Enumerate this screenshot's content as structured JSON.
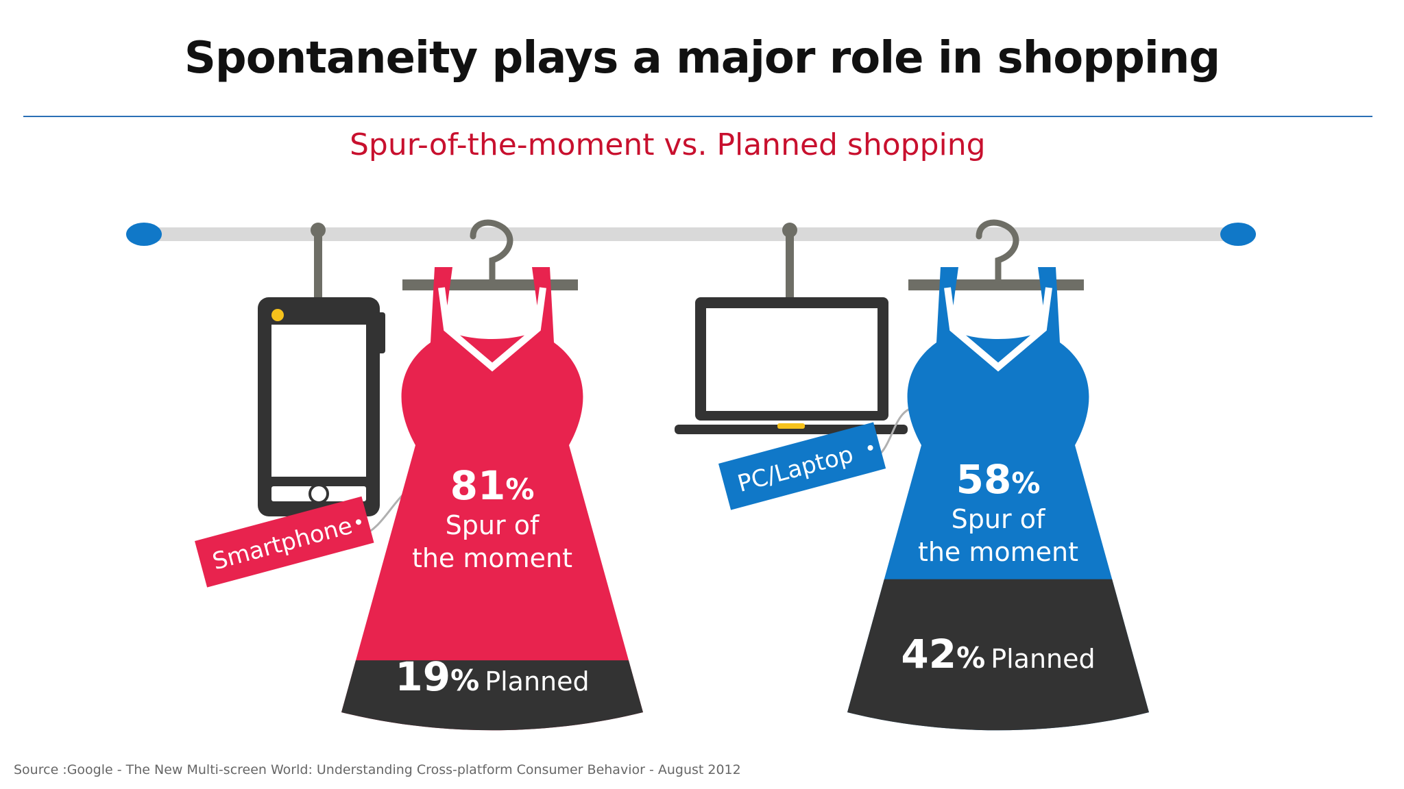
{
  "slide": {
    "title": "Spontaneity plays a major role in shopping",
    "subtitle": "Spur-of-the-moment vs. Planned shopping",
    "source": "Source :Google -  The New Multi-screen World: Understanding Cross-platform Consumer Behavior - August 2012"
  },
  "chart_data": {
    "type": "pie",
    "title": "Spur-of-the-moment vs. Planned shopping",
    "categories": [
      "Smartphone",
      "PC/Laptop"
    ],
    "series": [
      {
        "name": "Spur of the moment",
        "values": [
          81,
          58
        ]
      },
      {
        "name": "Planned",
        "values": [
          19,
          42
        ]
      }
    ],
    "items": [
      {
        "device": "Smartphone",
        "spur": 81,
        "spur_text": "81",
        "spur_label_1": "Spur of",
        "spur_label_2": "the moment",
        "planned": 19,
        "planned_text": "19",
        "planned_label": "Planned",
        "pct_sign": "%",
        "dress_color": "#e8234e",
        "tag_color": "#e8234e"
      },
      {
        "device": "PC/Laptop",
        "spur": 58,
        "spur_text": "58",
        "spur_label_1": "Spur of",
        "spur_label_2": "the moment",
        "planned": 42,
        "planned_text": "42",
        "planned_label": "Planned",
        "pct_sign": "%",
        "dress_color": "#1078c8",
        "tag_color": "#1078c8"
      }
    ],
    "colors": {
      "planned": "#333333",
      "rod": "#d9d9d9",
      "rod_end": "#1078c8",
      "hanger": "#6e6e66",
      "device": "#333333",
      "accent_dot": "#f6c21c"
    }
  }
}
